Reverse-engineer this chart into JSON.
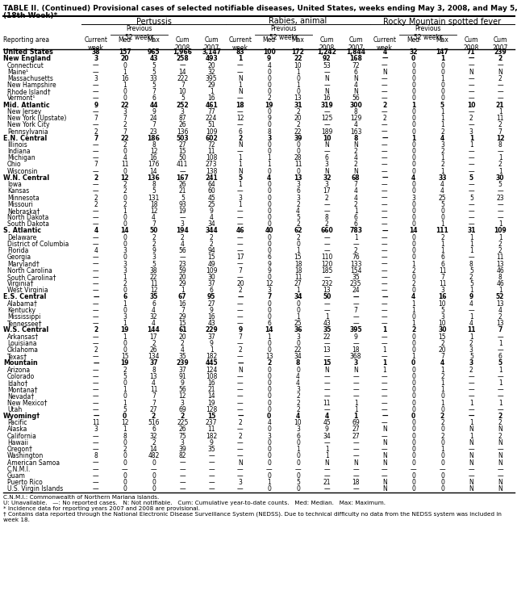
{
  "title_line1": "TABLE II. (Continued) Provisional cases of selected notifiable diseases, United States, weeks ending May 3, 2008, and May 5, 2007",
  "title_line2": "(18th Week)*",
  "rows": [
    [
      "United States",
      "38",
      "157",
      "965",
      "1,966",
      "3,147",
      "83",
      "100",
      "172",
      "1,242",
      "1,844",
      "4",
      "32",
      "147",
      "71",
      "239"
    ],
    [
      "New England",
      "3",
      "20",
      "43",
      "258",
      "493",
      "1",
      "9",
      "22",
      "92",
      "168",
      "—",
      "0",
      "1",
      "—",
      "2"
    ],
    [
      "Connecticut",
      "—",
      "0",
      "5",
      "—",
      "20",
      "—",
      "4",
      "10",
      "53",
      "72",
      "—",
      "0",
      "0",
      "—",
      "—"
    ],
    [
      "Maine¹",
      "—",
      "1",
      "5",
      "14",
      "32",
      "—",
      "0",
      "1",
      "—",
      "6",
      "N",
      "0",
      "0",
      "N",
      "N"
    ],
    [
      "Massachusetts",
      "3",
      "16",
      "33",
      "222",
      "395",
      "N",
      "0",
      "0",
      "N",
      "N",
      "—",
      "0",
      "1",
      "—",
      "2"
    ],
    [
      "New Hampshire",
      "—",
      "1",
      "5",
      "7",
      "29",
      "1",
      "0",
      "1",
      "—",
      "4",
      "—",
      "0",
      "0",
      "—",
      "—"
    ],
    [
      "Rhode Island†",
      "—",
      "0",
      "7",
      "10",
      "1",
      "N",
      "0",
      "0",
      "N",
      "N",
      "—",
      "0",
      "0",
      "—",
      "—"
    ],
    [
      "Vermont¹",
      "—",
      "0",
      "6",
      "5",
      "16",
      "—",
      "2",
      "13",
      "16",
      "56",
      "—",
      "0",
      "0",
      "—",
      "—"
    ],
    [
      "Mid. Atlantic",
      "9",
      "22",
      "44",
      "252",
      "461",
      "18",
      "19",
      "31",
      "319",
      "300",
      "2",
      "1",
      "5",
      "10",
      "21"
    ],
    [
      "New Jersey",
      "—",
      "3",
      "9",
      "3",
      "77",
      "—",
      "0",
      "2",
      "—",
      "8",
      "—",
      "0",
      "1",
      "—",
      "1"
    ],
    [
      "New York (Upstate)",
      "7",
      "7",
      "24",
      "87",
      "224",
      "12",
      "9",
      "20",
      "125",
      "129",
      "2",
      "0",
      "1",
      "2",
      "11"
    ],
    [
      "New York City",
      "—",
      "2",
      "7",
      "26",
      "51",
      "—",
      "0",
      "2",
      "—",
      "4",
      "—",
      "0",
      "1",
      "—",
      "2"
    ],
    [
      "Pennsylvania",
      "2",
      "7",
      "23",
      "136",
      "109",
      "6",
      "8",
      "22",
      "189",
      "163",
      "—",
      "0",
      "2",
      "3",
      "7"
    ],
    [
      "E.N. Central",
      "7",
      "22",
      "186",
      "503",
      "602",
      "2",
      "3",
      "39",
      "10",
      "8",
      "—",
      "1",
      "4",
      "1",
      "12"
    ],
    [
      "Illinois",
      "—",
      "2",
      "8",
      "27",
      "72",
      "N",
      "0",
      "0",
      "N",
      "N",
      "—",
      "0",
      "3",
      "1",
      "8"
    ],
    [
      "Indiana",
      "—",
      "0",
      "12",
      "15",
      "11",
      "—",
      "0",
      "0",
      "—",
      "2",
      "—",
      "0",
      "2",
      "—",
      "—"
    ],
    [
      "Michigan",
      "—",
      "4",
      "16",
      "50",
      "108",
      "1",
      "1",
      "28",
      "6",
      "4",
      "—",
      "0",
      "1",
      "—",
      "1"
    ],
    [
      "Ohio",
      "7",
      "11",
      "176",
      "411",
      "273",
      "1",
      "1",
      "11",
      "3",
      "2",
      "—",
      "0",
      "2",
      "—",
      "2"
    ],
    [
      "Wisconsin",
      "—",
      "0",
      "14",
      "—",
      "138",
      "N",
      "0",
      "0",
      "N",
      "N",
      "—",
      "0",
      "1",
      "—",
      "1"
    ],
    [
      "W.N. Central",
      "2",
      "12",
      "136",
      "167",
      "241",
      "5",
      "4",
      "13",
      "32",
      "68",
      "—",
      "4",
      "33",
      "5",
      "30"
    ],
    [
      "Iowa",
      "—",
      "2",
      "8",
      "26",
      "64",
      "1",
      "0",
      "3",
      "3",
      "7",
      "—",
      "0",
      "4",
      "—",
      "5"
    ],
    [
      "Kansas",
      "—",
      "2",
      "5",
      "21",
      "60",
      "—",
      "0",
      "6",
      "17",
      "4",
      "—",
      "0",
      "4",
      "—",
      "—"
    ],
    [
      "Minnesota",
      "2",
      "0",
      "131",
      "5",
      "45",
      "3",
      "0",
      "3",
      "2",
      "4",
      "—",
      "3",
      "25",
      "5",
      "23"
    ],
    [
      "Missouri",
      "2",
      "2",
      "18",
      "93",
      "25",
      "1",
      "0",
      "2",
      "—",
      "2",
      "—",
      "0",
      "5",
      "—",
      "—"
    ],
    [
      "Nebraska†",
      "—",
      "1",
      "12",
      "19",
      "9",
      "—",
      "0",
      "4",
      "—",
      "1",
      "—",
      "0",
      "0",
      "—",
      "—"
    ],
    [
      "North Dakota",
      "—",
      "0",
      "4",
      "—",
      "4",
      "—",
      "0",
      "5",
      "8",
      "6",
      "—",
      "0",
      "0",
      "—",
      "—"
    ],
    [
      "South Dakota",
      "—",
      "0",
      "7",
      "3",
      "34",
      "—",
      "0",
      "2",
      "2",
      "6",
      "—",
      "0",
      "1",
      "—",
      "1"
    ],
    [
      "S. Atlantic",
      "4",
      "14",
      "50",
      "194",
      "344",
      "46",
      "40",
      "62",
      "660",
      "783",
      "—",
      "14",
      "111",
      "31",
      "109"
    ],
    [
      "Delaware",
      "—",
      "0",
      "2",
      "2",
      "2",
      "—",
      "0",
      "2",
      "—",
      "1",
      "—",
      "0",
      "2",
      "1",
      "1"
    ],
    [
      "District of Columbia",
      "—",
      "0",
      "2",
      "4",
      "2",
      "—",
      "0",
      "0",
      "—",
      "—",
      "—",
      "0",
      "1",
      "1",
      "2"
    ],
    [
      "Florida",
      "4",
      "3",
      "9",
      "56",
      "94",
      "—",
      "0",
      "1",
      "—",
      "2",
      "—",
      "0",
      "1",
      "1",
      "2"
    ],
    [
      "Georgia",
      "—",
      "0",
      "3",
      "—",
      "15",
      "17",
      "6",
      "15",
      "110",
      "76",
      "—",
      "0",
      "6",
      "—",
      "11"
    ],
    [
      "Maryland†",
      "—",
      "3",
      "5",
      "23",
      "49",
      "—",
      "9",
      "18",
      "120",
      "133",
      "—",
      "1",
      "6",
      "8",
      "13"
    ],
    [
      "North Carolina",
      "—",
      "3",
      "38",
      "59",
      "109",
      "7",
      "9",
      "18",
      "185",
      "154",
      "—",
      "2",
      "11",
      "5",
      "46"
    ],
    [
      "South Carolina†",
      "—",
      "1",
      "22",
      "20",
      "30",
      "—",
      "0",
      "11",
      "—",
      "35",
      "—",
      "0",
      "7",
      "2",
      "8"
    ],
    [
      "Virginia†",
      "—",
      "2",
      "11",
      "29",
      "37",
      "20",
      "12",
      "27",
      "232",
      "235",
      "—",
      "2",
      "11",
      "5",
      "46"
    ],
    [
      "West Virginia",
      "—",
      "0",
      "12",
      "1",
      "6",
      "2",
      "3",
      "1",
      "13",
      "24",
      "—",
      "0",
      "3",
      "1",
      "1"
    ],
    [
      "E.S. Central",
      "—",
      "6",
      "35",
      "67",
      "95",
      "—",
      "7",
      "34",
      "50",
      "—",
      "—",
      "4",
      "16",
      "9",
      "52"
    ],
    [
      "Alabama†",
      "—",
      "1",
      "6",
      "16",
      "27",
      "—",
      "0",
      "0",
      "—",
      "—",
      "—",
      "1",
      "10",
      "4",
      "13"
    ],
    [
      "Kentucky",
      "—",
      "0",
      "4",
      "7",
      "9",
      "—",
      "0",
      "0",
      "—",
      "7",
      "—",
      "1",
      "5",
      "—",
      "4"
    ],
    [
      "Mississippi",
      "—",
      "3",
      "32",
      "29",
      "16",
      "—",
      "0",
      "1",
      "1",
      "—",
      "—",
      "0",
      "3",
      "1",
      "2"
    ],
    [
      "Tennessee†",
      "—",
      "1",
      "4",
      "15",
      "43",
      "—",
      "6",
      "25",
      "43",
      "—",
      "—",
      "1",
      "10",
      "4",
      "13"
    ],
    [
      "W.S. Central",
      "2",
      "19",
      "144",
      "61",
      "229",
      "9",
      "14",
      "36",
      "35",
      "395",
      "1",
      "2",
      "30",
      "11",
      "7"
    ],
    [
      "Arkansas†",
      "—",
      "1",
      "17",
      "20",
      "37",
      "7",
      "1",
      "3",
      "22",
      "9",
      "—",
      "0",
      "15",
      "1",
      "—"
    ],
    [
      "Louisiana",
      "—",
      "0",
      "2",
      "2",
      "9",
      "—",
      "0",
      "0",
      "—",
      "—",
      "—",
      "0",
      "2",
      "2",
      "1"
    ],
    [
      "Oklahoma",
      "2",
      "0",
      "26",
      "4",
      "1",
      "2",
      "0",
      "22",
      "13",
      "18",
      "1",
      "0",
      "20",
      "3",
      "—"
    ],
    [
      "Texas†",
      "—",
      "15",
      "134",
      "35",
      "182",
      "—",
      "13",
      "34",
      "—",
      "368",
      "—",
      "1",
      "7",
      "5",
      "6"
    ],
    [
      "Mountain",
      "—",
      "19",
      "37",
      "239",
      "445",
      "—",
      "2",
      "8",
      "15",
      "3",
      "1",
      "0",
      "4",
      "3",
      "5"
    ],
    [
      "Arizona",
      "—",
      "2",
      "8",
      "37",
      "124",
      "N",
      "0",
      "0",
      "N",
      "N",
      "1",
      "0",
      "1",
      "2",
      "1"
    ],
    [
      "Colorado",
      "—",
      "5",
      "13",
      "91",
      "108",
      "—",
      "0",
      "4",
      "—",
      "—",
      "—",
      "0",
      "2",
      "—",
      "—"
    ],
    [
      "Idaho†",
      "—",
      "0",
      "4",
      "9",
      "16",
      "—",
      "0",
      "4",
      "—",
      "—",
      "—",
      "0",
      "1",
      "—",
      "1"
    ],
    [
      "Montana†",
      "—",
      "1",
      "11",
      "56",
      "21",
      "—",
      "0",
      "3",
      "—",
      "—",
      "—",
      "0",
      "1",
      "—",
      "—"
    ],
    [
      "Nevada†",
      "—",
      "0",
      "7",
      "12",
      "14",
      "—",
      "0",
      "2",
      "—",
      "—",
      "—",
      "0",
      "0",
      "—",
      "—"
    ],
    [
      "New Mexico†",
      "—",
      "1",
      "7",
      "3",
      "19",
      "—",
      "0",
      "2",
      "11",
      "1",
      "—",
      "0",
      "1",
      "1",
      "1"
    ],
    [
      "Utah",
      "—",
      "5",
      "27",
      "69",
      "128",
      "—",
      "0",
      "2",
      "—",
      "1",
      "—",
      "0",
      "0",
      "—",
      "—"
    ],
    [
      "Wyoming†",
      "—",
      "0",
      "2",
      "2",
      "15",
      "—",
      "0",
      "4",
      "4",
      "1",
      "—",
      "0",
      "2",
      "—",
      "2"
    ],
    [
      "Pacific",
      "11",
      "12",
      "516",
      "225",
      "237",
      "2",
      "4",
      "10",
      "45",
      "69",
      "—",
      "0",
      "2",
      "1",
      "2"
    ],
    [
      "Alaska",
      "3",
      "1",
      "6",
      "26",
      "11",
      "—",
      "0",
      "3",
      "9",
      "27",
      "N",
      "0",
      "0",
      "N",
      "N"
    ],
    [
      "California",
      "—",
      "8",
      "32",
      "75",
      "182",
      "2",
      "3",
      "6",
      "34",
      "27",
      "—",
      "0",
      "2",
      "1",
      "2"
    ],
    [
      "Hawaii",
      "—",
      "0",
      "2",
      "3",
      "9",
      "—",
      "0",
      "0",
      "—",
      "—",
      "N",
      "0",
      "0",
      "N",
      "N"
    ],
    [
      "Oregon†",
      "—",
      "2",
      "14",
      "39",
      "35",
      "—",
      "0",
      "1",
      "1",
      "—",
      "—",
      "0",
      "1",
      "—",
      "—"
    ],
    [
      "Washington",
      "8",
      "0",
      "482",
      "82",
      "—",
      "—",
      "0",
      "0",
      "1",
      "—",
      "N",
      "0",
      "0",
      "N",
      "N"
    ],
    [
      "American Samoa",
      "—",
      "0",
      "0",
      "—",
      "—",
      "N",
      "0",
      "0",
      "N",
      "N",
      "N",
      "0",
      "0",
      "N",
      "N"
    ],
    [
      "C.N.M.I.",
      "—",
      "—",
      "—",
      "—",
      "—",
      "—",
      "—",
      "—",
      "—",
      "—",
      "—",
      "—",
      "—",
      "—",
      "—"
    ],
    [
      "Guam",
      "—",
      "0",
      "0",
      "—",
      "—",
      "—",
      "0",
      "0",
      "—",
      "—",
      "—",
      "0",
      "0",
      "—",
      "—"
    ],
    [
      "Puerto Rico",
      "—",
      "0",
      "0",
      "—",
      "—",
      "3",
      "1",
      "5",
      "21",
      "18",
      "N",
      "0",
      "0",
      "N",
      "N"
    ],
    [
      "U.S. Virgin Islands",
      "—",
      "0",
      "0",
      "—",
      "—",
      "—",
      "0",
      "0",
      "—",
      "—",
      "N",
      "0",
      "0",
      "N",
      "N"
    ]
  ],
  "bold_rows": [
    0,
    1,
    8,
    13,
    19,
    27,
    37,
    42,
    47,
    55
  ],
  "footnotes": [
    "C.N.M.I.: Commonwealth of Northern Mariana Islands.",
    "U: Unavailable.   —: No reported cases.   N: Not notifiable.   Cum: Cumulative year-to-date counts.   Med: Median.   Max: Maximum.",
    "* Incidence data for reporting years 2007 and 2008 are provisional.",
    "† Contains data reported through the National Electronic Disease Surveillance System (NEDSS). Due to technical difficulty no data from the NEDSS system was included in week 18."
  ]
}
